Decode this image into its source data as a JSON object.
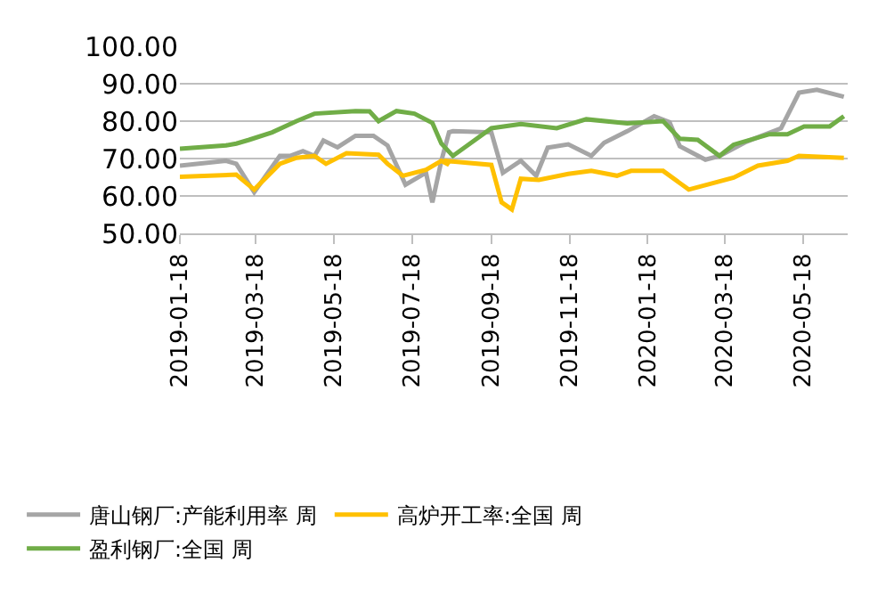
{
  "chart_data": {
    "type": "line",
    "ylim": [
      50,
      100
    ],
    "yticks": [
      {
        "value": 50,
        "label": "50.00"
      },
      {
        "value": 60,
        "label": "60.00"
      },
      {
        "value": 70,
        "label": "70.00"
      },
      {
        "value": 80,
        "label": "80.00"
      },
      {
        "value": 90,
        "label": "90.00"
      },
      {
        "value": 100,
        "label": "100.00"
      }
    ],
    "xlim": [
      "2019-01-18",
      "2020-06-22"
    ],
    "xticks": [
      "2019-01-18",
      "2019-03-18",
      "2019-05-18",
      "2019-07-18",
      "2019-09-18",
      "2019-11-18",
      "2020-01-18",
      "2020-03-18",
      "2020-05-18"
    ],
    "grid": "y",
    "legend": "bottom",
    "marker": "none",
    "line_style": "solid",
    "series": [
      {
        "name": "唐山钢厂:产能利用率 周",
        "color": "#a5a5a5",
        "x": [
          "2019-01-18",
          "2019-02-23",
          "2019-03-03",
          "2019-03-17",
          "2019-04-06",
          "2019-04-14",
          "2019-04-24",
          "2019-05-03",
          "2019-05-10",
          "2019-05-21",
          "2019-06-04",
          "2019-06-18",
          "2019-06-29",
          "2019-07-13",
          "2019-07-29",
          "2019-08-03",
          "2019-08-10",
          "2019-08-16",
          "2019-08-19",
          "2019-09-18",
          "2019-09-27",
          "2019-10-11",
          "2019-10-23",
          "2019-11-01",
          "2019-11-17",
          "2019-12-05",
          "2019-12-15",
          "2020-01-02",
          "2020-01-23",
          "2020-02-04",
          "2020-02-12",
          "2020-03-03",
          "2020-03-14",
          "2020-04-04",
          "2020-05-01",
          "2020-05-15",
          "2020-05-29",
          "2020-06-19"
        ],
        "values": [
          68.1,
          69.4,
          68.6,
          61,
          70.7,
          70.7,
          72,
          70.7,
          74.8,
          73,
          76.1,
          76.1,
          73.5,
          63,
          66.2,
          58.3,
          69.4,
          77,
          77.3,
          77,
          66.2,
          69.4,
          65.4,
          72.9,
          73.8,
          70.7,
          74.2,
          77.3,
          81.3,
          79.7,
          73.3,
          69.7,
          70.7,
          74.5,
          78.1,
          87.6,
          88.4,
          86.5
        ]
      },
      {
        "name": "高炉开工率:全国 周",
        "color": "#ffc000",
        "x": [
          "2019-01-18",
          "2019-03-03",
          "2019-03-17",
          "2019-04-06",
          "2019-04-19",
          "2019-05-03",
          "2019-05-12",
          "2019-05-28",
          "2019-06-22",
          "2019-06-29",
          "2019-07-11",
          "2019-07-29",
          "2019-08-10",
          "2019-08-16",
          "2019-08-12",
          "2019-09-18",
          "2019-09-26",
          "2019-10-04",
          "2019-10-11",
          "2019-10-25",
          "2019-11-17",
          "2019-12-05",
          "2019-12-25",
          "2020-01-05",
          "2020-01-30",
          "2020-02-19",
          "2020-03-25",
          "2020-04-13",
          "2020-05-06",
          "2020-05-15",
          "2020-06-19"
        ],
        "values": [
          65.1,
          65.7,
          61.7,
          68.6,
          70.2,
          70.7,
          68.6,
          71.4,
          71,
          68.6,
          65.4,
          67,
          69.4,
          68.3,
          69.4,
          68.3,
          58.3,
          56.4,
          64.6,
          64.3,
          65.9,
          66.7,
          65.4,
          66.7,
          66.7,
          61.7,
          64.9,
          68.1,
          69.4,
          70.7,
          70.2
        ]
      },
      {
        "name": "盈利钢厂:全国 周",
        "color": "#70ad47",
        "x": [
          "2019-01-18",
          "2019-02-23",
          "2019-03-03",
          "2019-03-13",
          "2019-03-31",
          "2019-04-19",
          "2019-05-03",
          "2019-06-04",
          "2019-06-15",
          "2019-06-22",
          "2019-07-06",
          "2019-07-20",
          "2019-08-03",
          "2019-08-10",
          "2019-08-19",
          "2019-09-18",
          "2019-10-11",
          "2019-11-08",
          "2019-12-01",
          "2020-01-02",
          "2020-01-30",
          "2020-02-12",
          "2020-02-26",
          "2020-03-14",
          "2020-03-25",
          "2020-04-22",
          "2020-05-06",
          "2020-05-19",
          "2020-06-08",
          "2020-06-19"
        ],
        "values": [
          72.6,
          73.5,
          74,
          75,
          77,
          80,
          82,
          82.7,
          82.6,
          80,
          82.7,
          82,
          79.5,
          74,
          70.7,
          78.1,
          79.2,
          78.1,
          80.5,
          79.4,
          80,
          75.3,
          75,
          70.7,
          73.7,
          76.5,
          76.5,
          78.6,
          78.6,
          81.3
        ]
      }
    ]
  }
}
